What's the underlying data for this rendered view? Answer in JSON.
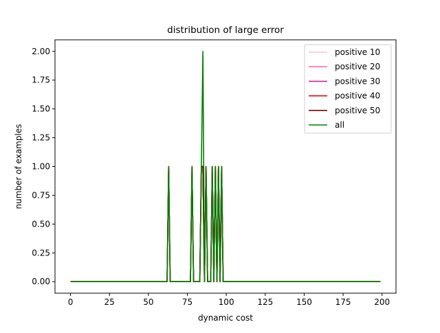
{
  "chart_data": {
    "type": "line",
    "title": "distribution of large error",
    "xlabel": "dynamic cost",
    "ylabel": "number of examples",
    "xlim": [
      -9.95,
      208.95
    ],
    "ylim": [
      -0.1,
      2.1
    ],
    "xticks": [
      0,
      25,
      50,
      75,
      100,
      125,
      150,
      175,
      200
    ],
    "xtick_labels": [
      "0",
      "25",
      "50",
      "75",
      "100",
      "125",
      "150",
      "175",
      "200"
    ],
    "yticks": [
      0,
      0.25,
      0.5,
      0.75,
      1.0,
      1.25,
      1.5,
      1.75,
      2.0
    ],
    "ytick_labels": [
      "0.00",
      "0.25",
      "0.50",
      "0.75",
      "1.00",
      "1.25",
      "1.50",
      "1.75",
      "2.00"
    ],
    "grid": false,
    "legend_position": "top-right",
    "x_range": [
      0,
      199
    ],
    "series": [
      {
        "name": "positive 10",
        "color": "#ffc0cb",
        "peaks": [
          [
            63,
            1
          ],
          [
            78,
            1
          ],
          [
            84,
            1
          ],
          [
            85,
            1
          ],
          [
            87,
            1
          ],
          [
            91,
            1
          ],
          [
            93,
            1
          ],
          [
            95,
            1
          ],
          [
            97,
            1
          ]
        ]
      },
      {
        "name": "positive 20",
        "color": "#ff69b4",
        "peaks": [
          [
            63,
            1
          ],
          [
            78,
            1
          ],
          [
            84,
            1
          ],
          [
            85,
            1
          ],
          [
            87,
            1
          ],
          [
            91,
            1
          ],
          [
            93,
            1
          ],
          [
            95,
            1
          ],
          [
            97,
            1
          ]
        ]
      },
      {
        "name": "positive 30",
        "color": "#dd1a9f",
        "peaks": [
          [
            63,
            1
          ],
          [
            78,
            1
          ],
          [
            84,
            1
          ],
          [
            85,
            1
          ],
          [
            87,
            1
          ],
          [
            91,
            1
          ],
          [
            93,
            1
          ],
          [
            95,
            1
          ],
          [
            97,
            1
          ]
        ]
      },
      {
        "name": "positive 40",
        "color": "#e00000",
        "peaks": [
          [
            63,
            1
          ],
          [
            78,
            1
          ],
          [
            84,
            1
          ],
          [
            85,
            1
          ],
          [
            87,
            1
          ],
          [
            91,
            1
          ],
          [
            93,
            1
          ],
          [
            95,
            1
          ],
          [
            97,
            1
          ]
        ]
      },
      {
        "name": "positive 50",
        "color": "#7a0000",
        "peaks": [
          [
            63,
            1
          ],
          [
            78,
            1
          ],
          [
            84,
            1
          ],
          [
            85,
            1
          ],
          [
            87,
            1
          ],
          [
            91,
            1
          ],
          [
            93,
            1
          ],
          [
            95,
            1
          ],
          [
            97,
            1
          ]
        ]
      },
      {
        "name": "all",
        "color": "#008000",
        "peaks": [
          [
            63,
            1
          ],
          [
            78,
            1
          ],
          [
            84,
            1
          ],
          [
            85,
            2
          ],
          [
            87,
            1
          ],
          [
            91,
            1
          ],
          [
            93,
            1
          ],
          [
            95,
            1
          ],
          [
            97,
            1
          ]
        ]
      }
    ]
  }
}
